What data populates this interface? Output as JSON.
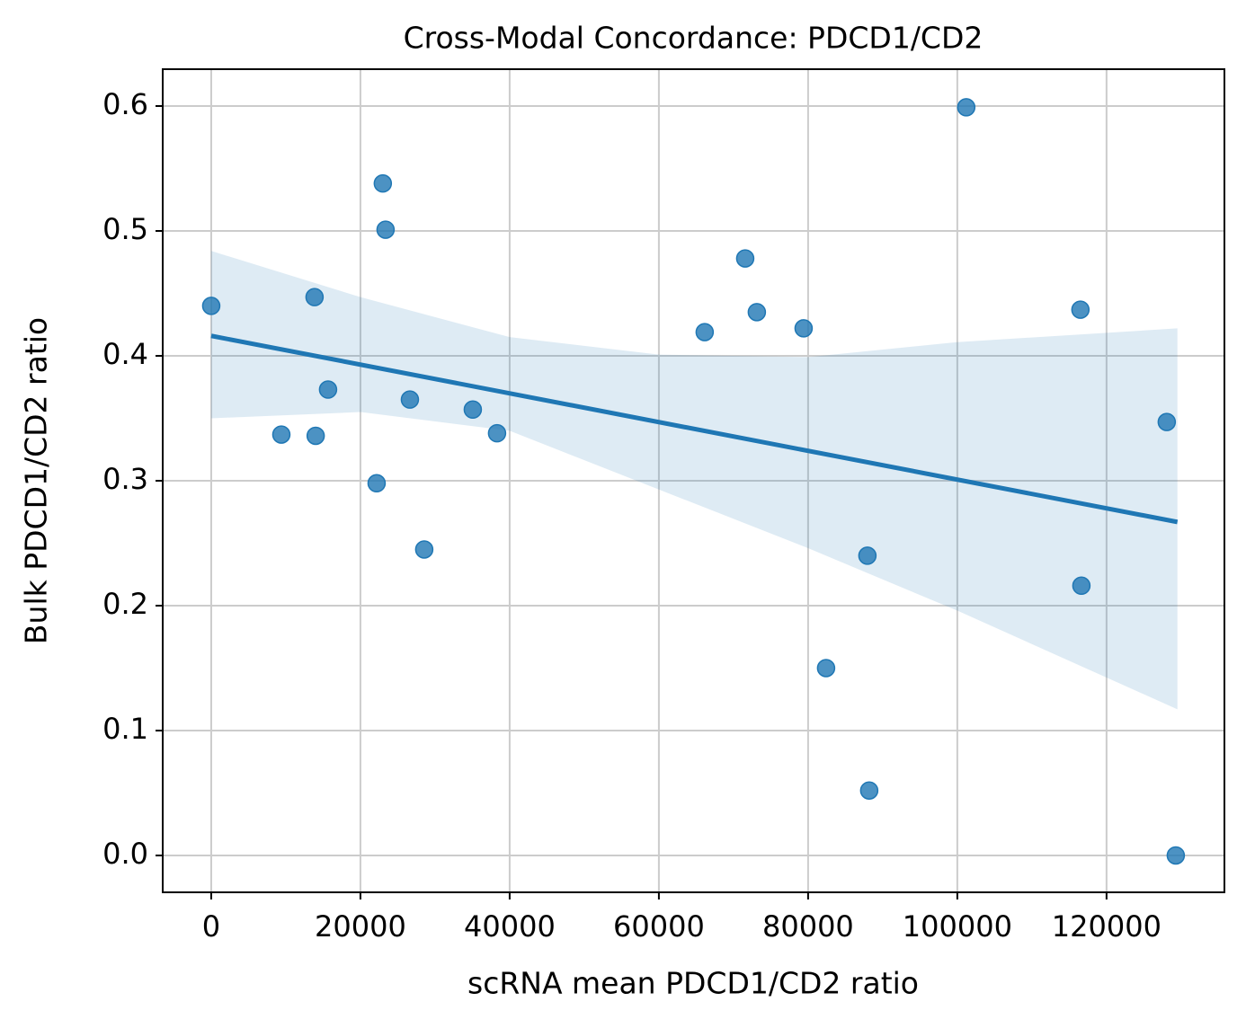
{
  "chart_data": {
    "type": "scatter",
    "title": "Cross-Modal Concordance: PDCD1/CD2",
    "x_label": "scRNA mean PDCD1/CD2 ratio",
    "y_label": "Bulk PDCD1/CD2 ratio",
    "color": "#1f77b4",
    "grid": true,
    "x": [
      0,
      9400,
      13850,
      14000,
      15660,
      22170,
      23000,
      23370,
      26630,
      28550,
      35060,
      38310,
      66140,
      71570,
      73130,
      79400,
      82410,
      87950,
      88190,
      101200,
      116500,
      116630,
      128070,
      129280
    ],
    "y": [
      0.44,
      0.337,
      0.447,
      0.336,
      0.373,
      0.298,
      0.538,
      0.501,
      0.365,
      0.245,
      0.357,
      0.338,
      0.419,
      0.478,
      0.435,
      0.422,
      0.15,
      0.24,
      0.052,
      0.599,
      0.437,
      0.216,
      0.347,
      0.0
    ],
    "fit": {
      "x": [
        0,
        129500
      ],
      "y": [
        0.416,
        0.267
      ]
    },
    "band": {
      "x": [
        0,
        20000,
        40000,
        60000,
        80000,
        100000,
        129500
      ],
      "upper": [
        0.484,
        0.447,
        0.415,
        0.401,
        0.399,
        0.411,
        0.422
      ],
      "lower": [
        0.35,
        0.355,
        0.34,
        0.293,
        0.246,
        0.196,
        0.117
      ]
    },
    "xlim": [
      -6500,
      135800
    ],
    "ylim": [
      -0.0295,
      0.6295
    ],
    "xticks": [
      0,
      20000,
      40000,
      60000,
      80000,
      100000,
      120000
    ],
    "yticks": [
      {
        "value": 0,
        "label": "0.0"
      },
      0.1,
      0.2,
      0.3,
      0.4,
      0.5,
      0.6
    ]
  }
}
